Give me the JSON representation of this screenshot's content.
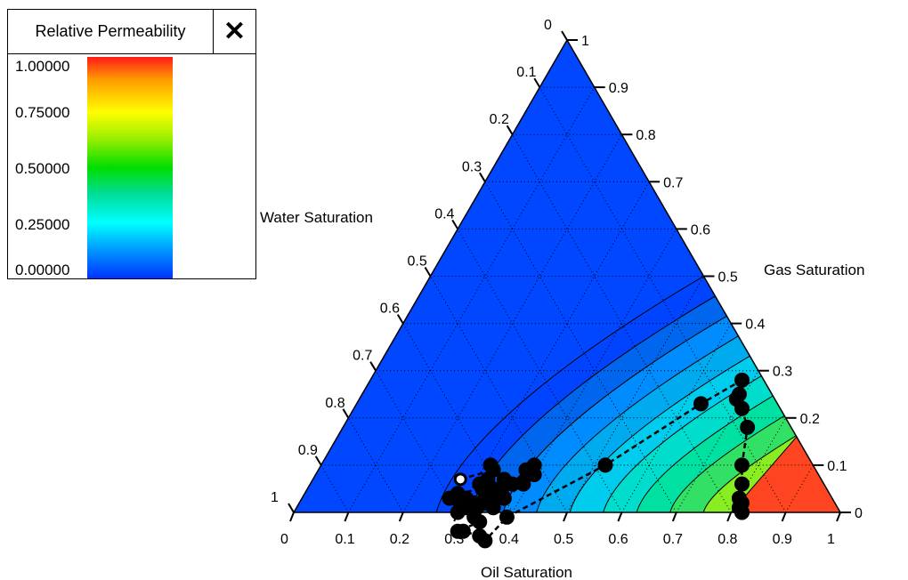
{
  "legend": {
    "title": "Relative Permeability",
    "close_icon": "close-icon",
    "ticks": [
      "1.00000",
      "0.75000",
      "0.50000",
      "0.25000",
      "0.00000"
    ],
    "colors": [
      "#ff1a1a",
      "#ff9900",
      "#ffff00",
      "#99ee00",
      "#00dd00",
      "#00dd99",
      "#00ffff",
      "#0099ff",
      "#0033ff"
    ]
  },
  "chart_data": {
    "type": "scatter",
    "subtype": "ternary",
    "axes": {
      "water": {
        "label": "Water Saturation",
        "ticks": [
          "0",
          "0.1",
          "0.2",
          "0.3",
          "0.4",
          "0.5",
          "0.6",
          "0.7",
          "0.8",
          "0.9",
          "1"
        ]
      },
      "gas": {
        "label": "Gas Saturation",
        "ticks": [
          "0",
          "0.1",
          "0.2",
          "0.3",
          "0.4",
          "0.5",
          "0.6",
          "0.7",
          "0.8",
          "0.9",
          "1"
        ]
      },
      "oil": {
        "label": "Oil Saturation",
        "ticks": [
          "0",
          "0.1",
          "0.2",
          "0.3",
          "0.4",
          "0.5",
          "0.6",
          "0.7",
          "0.8",
          "0.9",
          "1"
        ]
      }
    },
    "grid": true,
    "background_value": 0.0,
    "contour_colors": [
      "#0044ff",
      "#0066ee",
      "#008cff",
      "#00aaee",
      "#00ccee",
      "#00ddcc",
      "#00e0a0",
      "#33e066",
      "#88ee22",
      "#ccee00",
      "#ff5522"
    ],
    "points": [
      {
        "oil": 0.27,
        "gas": 0.07,
        "open": true
      },
      {
        "oil": 0.32,
        "gas": 0.09
      },
      {
        "oil": 0.31,
        "gas": 0.1
      },
      {
        "oil": 0.32,
        "gas": 0.07
      },
      {
        "oil": 0.31,
        "gas": 0.06
      },
      {
        "oil": 0.32,
        "gas": 0.05
      },
      {
        "oil": 0.28,
        "gas": 0.04
      },
      {
        "oil": 0.27,
        "gas": 0.03
      },
      {
        "oil": 0.3,
        "gas": 0.03
      },
      {
        "oil": 0.32,
        "gas": 0.02
      },
      {
        "oil": 0.33,
        "gas": 0.01
      },
      {
        "oil": 0.31,
        "gas": 0.01
      },
      {
        "oil": 0.3,
        "gas": 0.0
      },
      {
        "oil": 0.34,
        "gas": 0.05
      },
      {
        "oil": 0.35,
        "gas": 0.07
      },
      {
        "oil": 0.36,
        "gas": 0.04
      },
      {
        "oil": 0.35,
        "gas": 0.03
      },
      {
        "oil": 0.37,
        "gas": 0.06
      },
      {
        "oil": 0.38,
        "gas": 0.09
      },
      {
        "oil": 0.39,
        "gas": 0.1
      },
      {
        "oil": 0.4,
        "gas": 0.08
      },
      {
        "oil": 0.39,
        "gas": 0.06
      },
      {
        "oil": 0.37,
        "gas": 0.03
      },
      {
        "oil": 0.34,
        "gas": 0.02
      },
      {
        "oil": 0.33,
        "gas": 0.04
      },
      {
        "oil": 0.36,
        "gas": 0.01
      },
      {
        "oil": 0.3,
        "gas": 0.01
      },
      {
        "oil": 0.33,
        "gas": -0.01
      },
      {
        "oil": 0.34,
        "gas": -0.02
      },
      {
        "oil": 0.3,
        "gas": -0.04
      },
      {
        "oil": 0.31,
        "gas": -0.04
      },
      {
        "oil": 0.34,
        "gas": -0.05
      },
      {
        "oil": 0.35,
        "gas": -0.06
      },
      {
        "oil": 0.39,
        "gas": -0.01
      },
      {
        "oil": 0.52,
        "gas": 0.1
      },
      {
        "oil": 0.63,
        "gas": 0.23
      },
      {
        "oil": 0.68,
        "gas": 0.28
      },
      {
        "oil": 0.69,
        "gas": 0.25
      },
      {
        "oil": 0.69,
        "gas": 0.24
      },
      {
        "oil": 0.71,
        "gas": 0.22
      },
      {
        "oil": 0.74,
        "gas": 0.18
      },
      {
        "oil": 0.77,
        "gas": 0.1
      },
      {
        "oil": 0.79,
        "gas": 0.06
      },
      {
        "oil": 0.8,
        "gas": 0.03
      },
      {
        "oil": 0.81,
        "gas": 0.02
      },
      {
        "oil": 0.81,
        "gas": 0.01
      },
      {
        "oil": 0.82,
        "gas": 0.0
      },
      {
        "oil": 0.82,
        "gas": 0.0
      }
    ]
  }
}
